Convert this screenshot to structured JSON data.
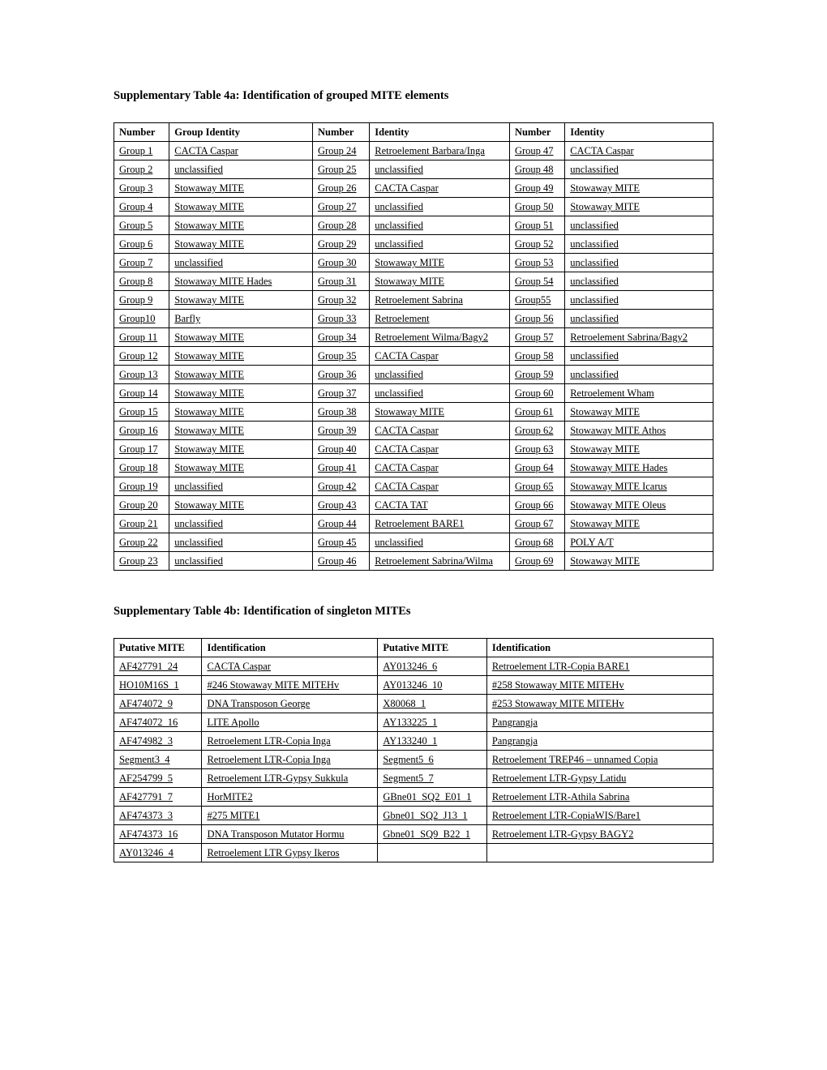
{
  "table4a": {
    "title": "Supplementary Table 4a: Identification of grouped MITE elements",
    "headers": [
      "Number",
      "Group Identity",
      "Number",
      "Identity",
      "Number",
      "Identity"
    ],
    "rows": [
      [
        "Group 1",
        "CACTA Caspar",
        "Group 24",
        "Retroelement Barbara/Inga",
        "Group 47",
        "CACTA Caspar"
      ],
      [
        "Group 2",
        "unclassified",
        "Group 25",
        "unclassified",
        "Group 48",
        "unclassified"
      ],
      [
        "Group 3",
        "Stowaway MITE",
        "Group 26",
        "CACTA Caspar",
        "Group 49",
        "Stowaway MITE"
      ],
      [
        "Group 4",
        "Stowaway MITE",
        "Group 27",
        "unclassified",
        "Group 50",
        "Stowaway MITE"
      ],
      [
        "Group 5",
        "Stowaway MITE",
        "Group 28",
        "unclassified",
        "Group 51",
        "unclassified"
      ],
      [
        "Group 6",
        "Stowaway MITE",
        "Group 29",
        "unclassified",
        "Group 52",
        "unclassified"
      ],
      [
        "Group 7",
        "unclassified",
        "Group 30",
        "Stowaway MITE",
        "Group 53",
        "unclassified"
      ],
      [
        "Group 8",
        "Stowaway MITE Hades",
        "Group 31",
        "Stowaway MITE",
        "Group 54",
        "unclassified"
      ],
      [
        "Group 9",
        "Stowaway MITE",
        "Group 32",
        "Retroelement Sabrina",
        "Group55",
        "unclassified"
      ],
      [
        "Group10",
        "Barfly",
        "Group 33",
        "Retroelement",
        "Group 56",
        "unclassified"
      ],
      [
        "Group 11",
        "Stowaway MITE",
        "Group 34",
        "Retroelement Wilma/Bagy2",
        "Group 57",
        "Retroelement Sabrina/Bagy2"
      ],
      [
        "Group 12",
        "Stowaway MITE",
        "Group 35",
        "CACTA Caspar",
        "Group 58",
        "unclassified"
      ],
      [
        "Group 13",
        "Stowaway MITE",
        "Group 36",
        "unclassified",
        "Group 59",
        "unclassified"
      ],
      [
        "Group 14",
        "Stowaway MITE",
        "Group 37",
        "unclassified",
        "Group 60",
        "Retroelement  Wham"
      ],
      [
        "Group 15",
        "Stowaway MITE",
        "Group 38",
        "Stowaway MITE",
        "Group 61",
        "Stowaway MITE"
      ],
      [
        "Group 16",
        "Stowaway MITE",
        "Group 39",
        "CACTA Caspar",
        "Group 62",
        "Stowaway MITE Athos"
      ],
      [
        "Group 17",
        "Stowaway MITE",
        "Group 40",
        "CACTA Caspar",
        "Group 63",
        "Stowaway MITE"
      ],
      [
        "Group 18",
        "Stowaway MITE",
        "Group 41",
        "CACTA Caspar",
        "Group 64",
        "Stowaway MITE Hades"
      ],
      [
        "Group 19",
        "unclassified",
        "Group 42",
        "CACTA Caspar",
        "Group 65",
        "Stowaway MITE Icarus"
      ],
      [
        "Group 20",
        "Stowaway MITE",
        "Group 43",
        "CACTA TAT",
        "Group 66",
        "Stowaway MITE Oleus"
      ],
      [
        "Group 21",
        "unclassified",
        "Group 44",
        "Retroelement BARE1",
        "Group 67",
        "Stowaway MITE"
      ],
      [
        "Group 22",
        "unclassified",
        "Group 45",
        "unclassified",
        "Group 68",
        "POLY A/T"
      ],
      [
        "Group 23",
        "unclassified",
        "Group 46",
        "Retroelement Sabrina/Wilma",
        "Group 69",
        "Stowaway MITE"
      ]
    ]
  },
  "table4b": {
    "title": "Supplementary Table 4b: Identification of  singleton MITEs",
    "headers": [
      "Putative MITE",
      "Identification",
      "Putative MITE",
      "Identification"
    ],
    "rows": [
      [
        "AF427791_24",
        "CACTA Caspar",
        "AY013246_6",
        "Retroelement LTR-Copia BARE1"
      ],
      [
        "HO10M16S_1",
        "#246 Stowaway MITE MITEHv",
        "AY013246_10",
        "#258 Stowaway MITE MITEHv"
      ],
      [
        "AF474072_9",
        "DNA Transposon George",
        "X80068_1",
        "#253 Stowaway MITE MITEHv"
      ],
      [
        "AF474072_16",
        "LITE Apollo",
        "AY133225_1",
        "Pangrangja"
      ],
      [
        "AF474982_3",
        "Retroelement LTR-Copia Inga",
        "AY133240_1",
        "Pangrangja"
      ],
      [
        "Segment3_4",
        "Retroelement LTR-Copia Inga",
        "Segment5_6",
        "Retroelement TREP46 – unnamed Copia"
      ],
      [
        "AF254799_5",
        "Retroelement LTR-Gypsy Sukkula",
        "Segment5_7",
        "Retroelement LTR-Gypsy Latidu"
      ],
      [
        "AF427791_7",
        "HorMITE2",
        "GBne01_SQ2_E01_1",
        "Retroelement LTR-Athila Sabrina"
      ],
      [
        "AF474373_3",
        "#275 MITE1",
        "Gbne01_SQ2_J13_1",
        "Retroelement LTR-CopiaWIS/Bare1"
      ],
      [
        "AF474373_16",
        "DNA Transposon Mutator Hormu",
        "Gbne01_SQ9_B22_1",
        "Retroelement LTR-Gypsy BAGY2"
      ],
      [
        "AY013246_4",
        "Retroelement LTR Gypsy Ikeros",
        "",
        ""
      ]
    ]
  }
}
